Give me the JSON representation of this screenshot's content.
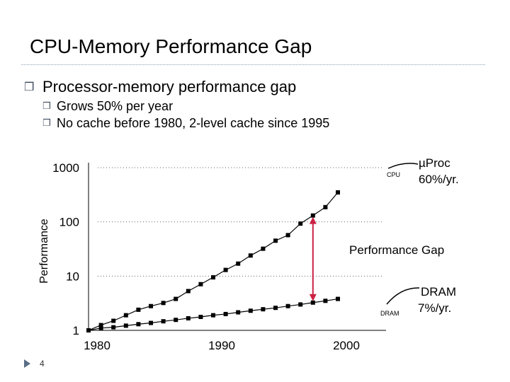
{
  "slide": {
    "title": "CPU-Memory Performance Gap",
    "bullets": {
      "main": "Processor-memory performance gap",
      "sub": [
        "Grows 50% per year",
        "No cache before 1980,  2-level cache since 1995"
      ]
    },
    "page_number": "4",
    "colors": {
      "bullet": "#3d4a5c",
      "title_rule": "#8aa0b0",
      "gap_arrow": "#cc2244"
    }
  },
  "chart_data": {
    "type": "line",
    "ylabel": "Performance",
    "xlabel": "",
    "y_scale": "log",
    "ylim": [
      1,
      1000
    ],
    "xlim": [
      1980,
      2000
    ],
    "x_ticks": [
      "1980",
      "1990",
      "2000"
    ],
    "y_ticks": [
      "1",
      "10",
      "100",
      "1000"
    ],
    "grid": "dotted lines at 10, 100, 1000",
    "series": [
      {
        "name": "CPU",
        "x": [
          1980,
          1981,
          1982,
          1983,
          1984,
          1985,
          1986,
          1987,
          1988,
          1989,
          1990,
          1991,
          1992,
          1993,
          1994,
          1995,
          1996,
          1997,
          1998,
          1999,
          2000
        ],
        "values": [
          1.0,
          1.25,
          1.5,
          1.9,
          2.4,
          2.8,
          3.2,
          3.8,
          5.3,
          7.1,
          9.5,
          13,
          17,
          24,
          32,
          45,
          57,
          93,
          131,
          187,
          350
        ]
      },
      {
        "name": "DRAM",
        "x": [
          1980,
          1981,
          1982,
          1983,
          1984,
          1985,
          1986,
          1987,
          1988,
          1989,
          1990,
          1991,
          1992,
          1993,
          1994,
          1995,
          1996,
          1997,
          1998,
          1999,
          2000
        ],
        "values": [
          1.0,
          1.1,
          1.14,
          1.22,
          1.3,
          1.37,
          1.47,
          1.56,
          1.67,
          1.77,
          1.9,
          2.0,
          2.15,
          2.3,
          2.45,
          2.6,
          2.8,
          3.0,
          3.25,
          3.5,
          3.8
        ]
      }
    ],
    "annotations": {
      "cpu_label": "µProc",
      "cpu_rate": "60%/yr.",
      "dram_label": "DRAM",
      "dram_rate": "7%/yr.",
      "gap_label": "Performance Gap",
      "cpu_small": "CPU",
      "dram_small": "DRAM"
    },
    "gap_year": 1998
  }
}
